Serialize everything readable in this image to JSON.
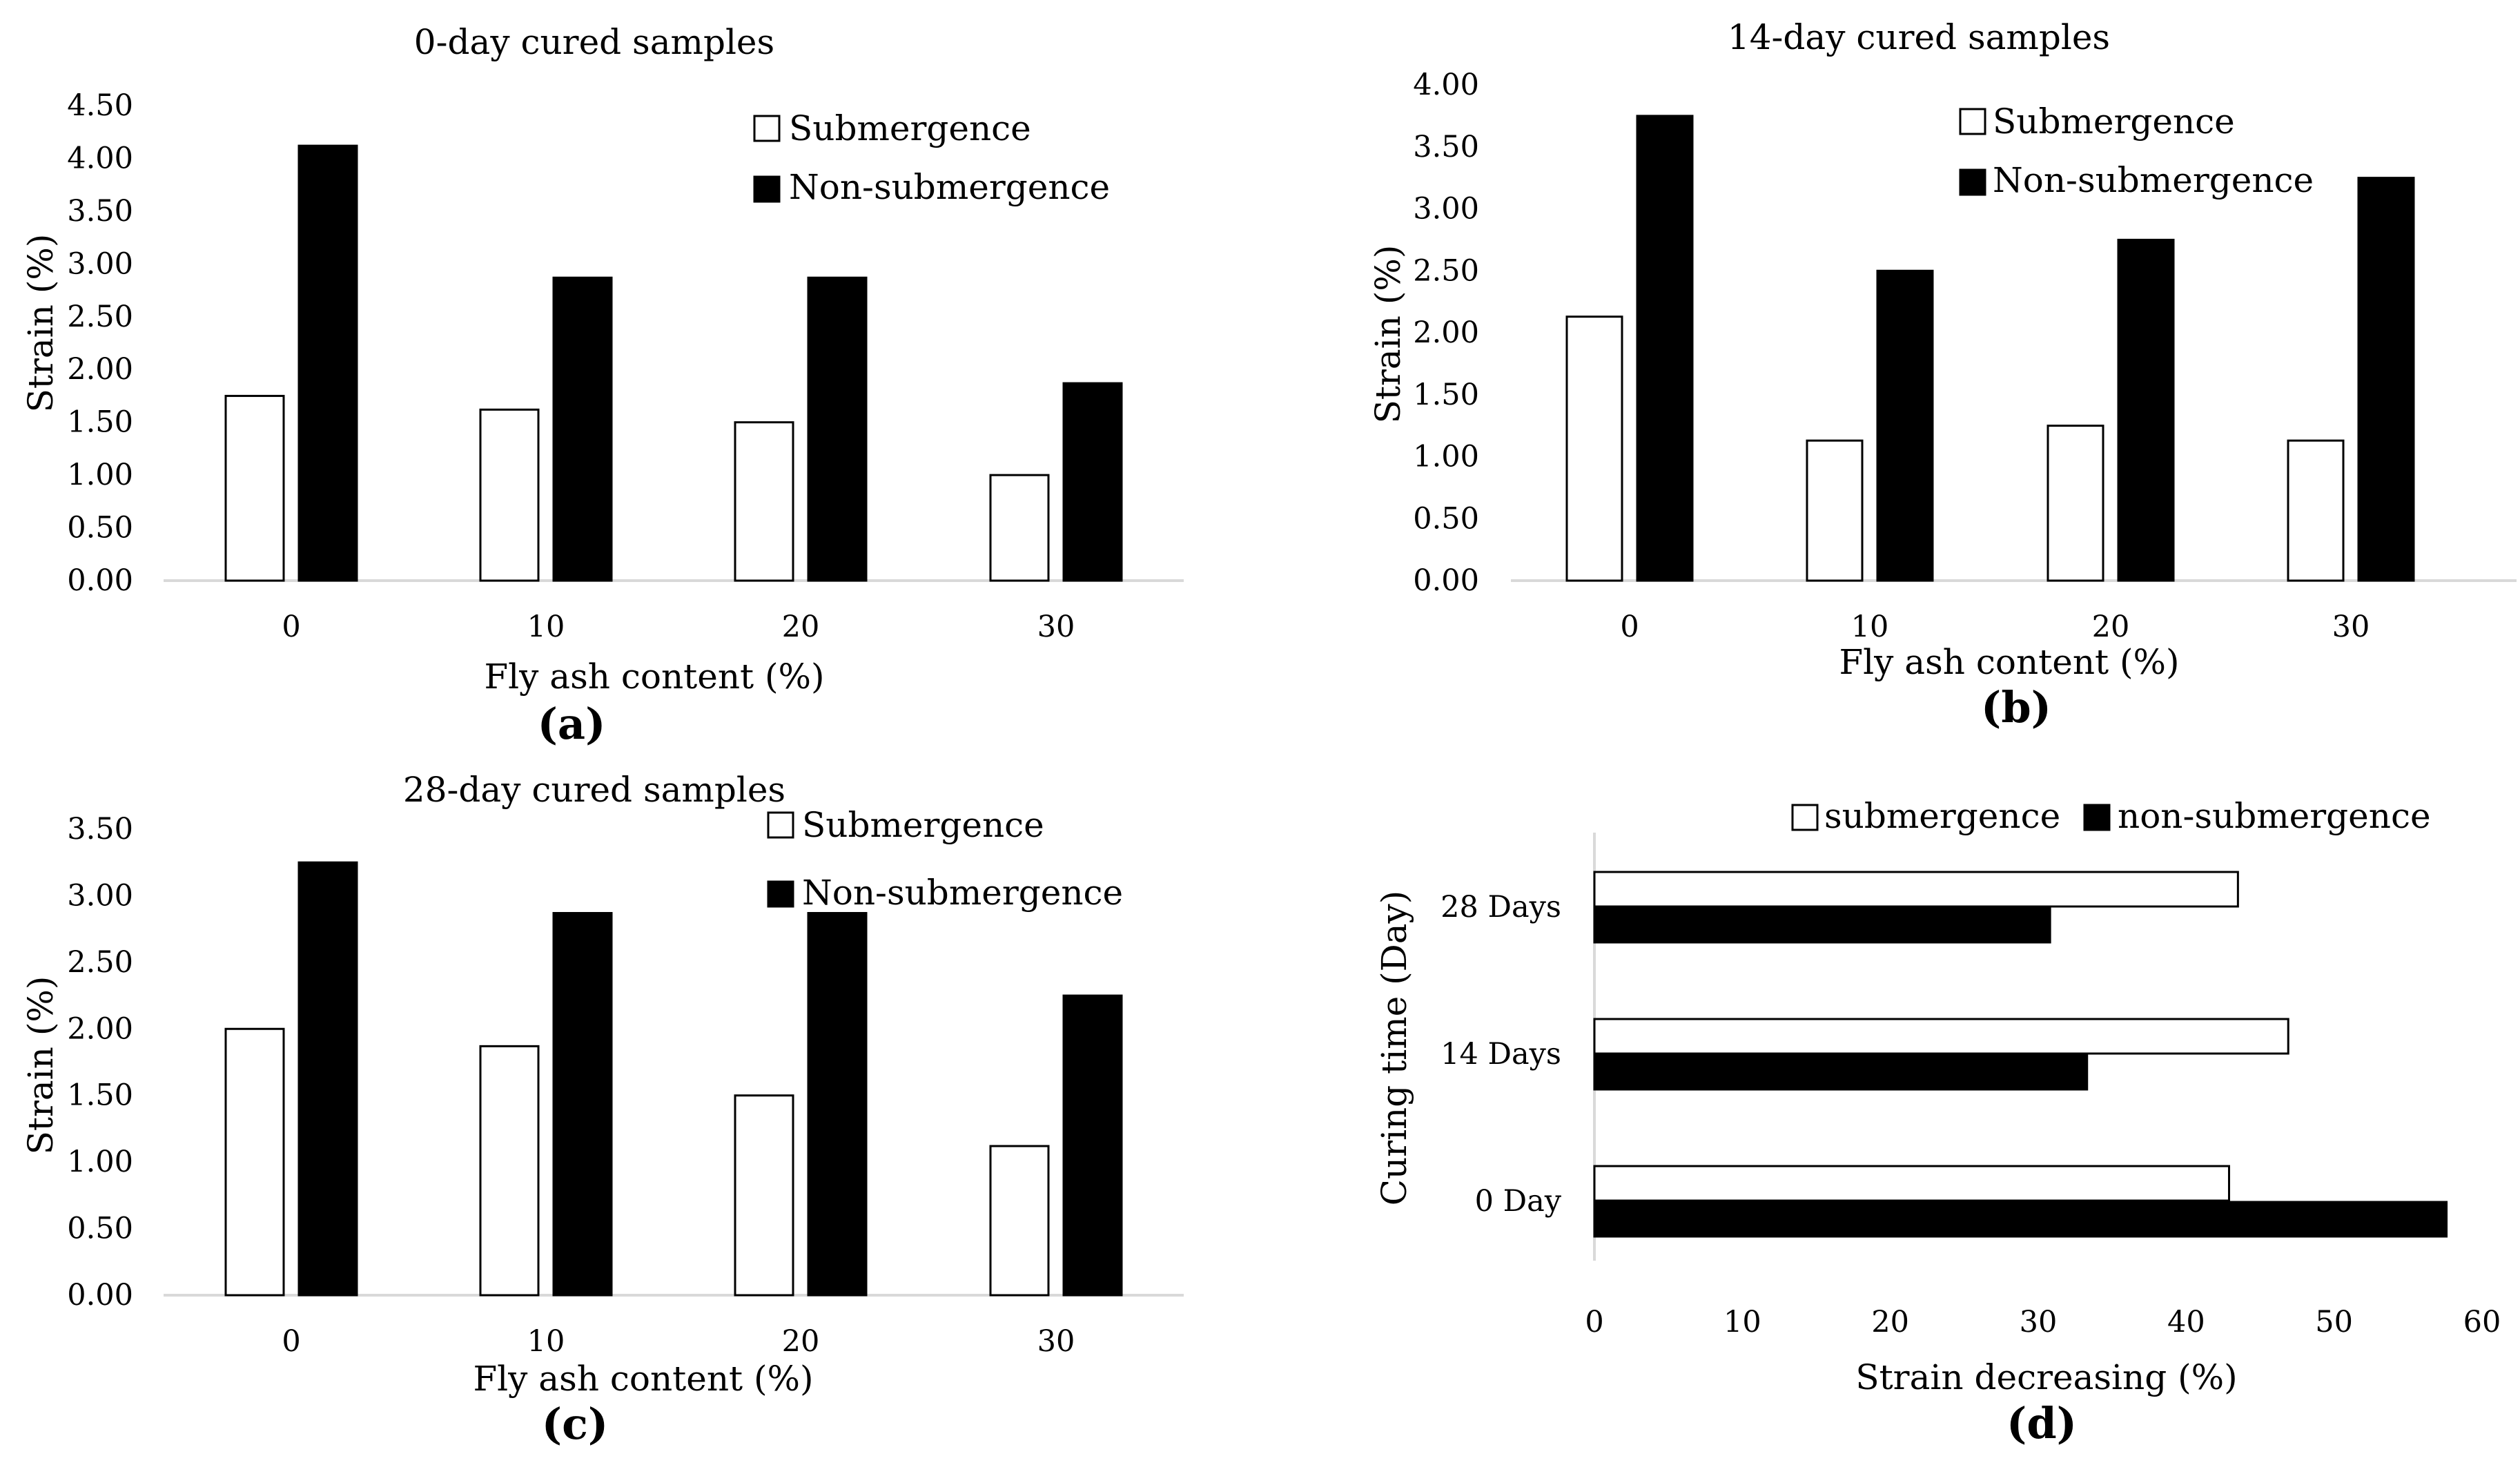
{
  "colors": {
    "submergence": "#ffffff",
    "non_submergence": "#000000",
    "outline": "#000000",
    "axis": "#d9d9d9"
  },
  "chart_data": [
    {
      "id": "a",
      "type": "bar",
      "panel_label": "(a)",
      "title": "0-day cured samples",
      "xlabel": "Fly ash content (%)",
      "ylabel": "Strain (%)",
      "categories": [
        "0",
        "10",
        "20",
        "30"
      ],
      "ylim": [
        0,
        4.5
      ],
      "yticks": [
        "0.00",
        "0.50",
        "1.00",
        "1.50",
        "2.00",
        "2.50",
        "3.00",
        "3.50",
        "4.00",
        "4.50"
      ],
      "legend_position": "top-right",
      "series": [
        {
          "name": "Submergence",
          "values": [
            1.75,
            1.62,
            1.5,
            1.0
          ]
        },
        {
          "name": "Non-submergence",
          "values": [
            4.12,
            2.87,
            2.87,
            1.87
          ]
        }
      ]
    },
    {
      "id": "b",
      "type": "bar",
      "panel_label": "(b)",
      "title": "14-day cured samples",
      "xlabel": "Fly ash content (%)",
      "ylabel": "Strain (%)",
      "categories": [
        "0",
        "10",
        "20",
        "30"
      ],
      "ylim": [
        0,
        4.0
      ],
      "yticks": [
        "0.00",
        "0.50",
        "1.00",
        "1.50",
        "2.00",
        "2.50",
        "3.00",
        "3.50",
        "4.00"
      ],
      "legend_position": "top-right",
      "series": [
        {
          "name": "Submergence",
          "values": [
            2.13,
            1.13,
            1.25,
            1.13
          ]
        },
        {
          "name": "Non-submergence",
          "values": [
            3.75,
            2.5,
            2.75,
            3.25
          ]
        }
      ]
    },
    {
      "id": "c",
      "type": "bar",
      "panel_label": "(c)",
      "title": "28-day cured samples",
      "xlabel": "Fly ash content (%)",
      "ylabel": "Strain (%)",
      "categories": [
        "0",
        "10",
        "20",
        "30"
      ],
      "ylim": [
        0,
        3.5
      ],
      "yticks": [
        "0.00",
        "0.50",
        "1.00",
        "1.50",
        "2.00",
        "2.50",
        "3.00",
        "3.50"
      ],
      "legend_position": "top-right",
      "series": [
        {
          "name": "Submergence",
          "values": [
            2.0,
            1.87,
            1.5,
            1.12
          ]
        },
        {
          "name": "Non-submergence",
          "values": [
            3.25,
            2.87,
            2.87,
            2.25
          ]
        }
      ]
    },
    {
      "id": "d",
      "type": "bar",
      "orientation": "horizontal",
      "panel_label": "(d)",
      "title": "",
      "xlabel": "Strain decreasing (%)",
      "ylabel": "Curing time (Day)",
      "categories": [
        "0 Day",
        "14 Days",
        "28 Days"
      ],
      "xlim": [
        0,
        60
      ],
      "xticks": [
        "0",
        "10",
        "20",
        "30",
        "40",
        "50",
        "60"
      ],
      "legend_position": "top",
      "series": [
        {
          "name": "submergence",
          "values": [
            42.9,
            46.9,
            43.5
          ]
        },
        {
          "name": "non-submergence",
          "values": [
            57.6,
            33.3,
            30.8
          ]
        }
      ]
    }
  ]
}
